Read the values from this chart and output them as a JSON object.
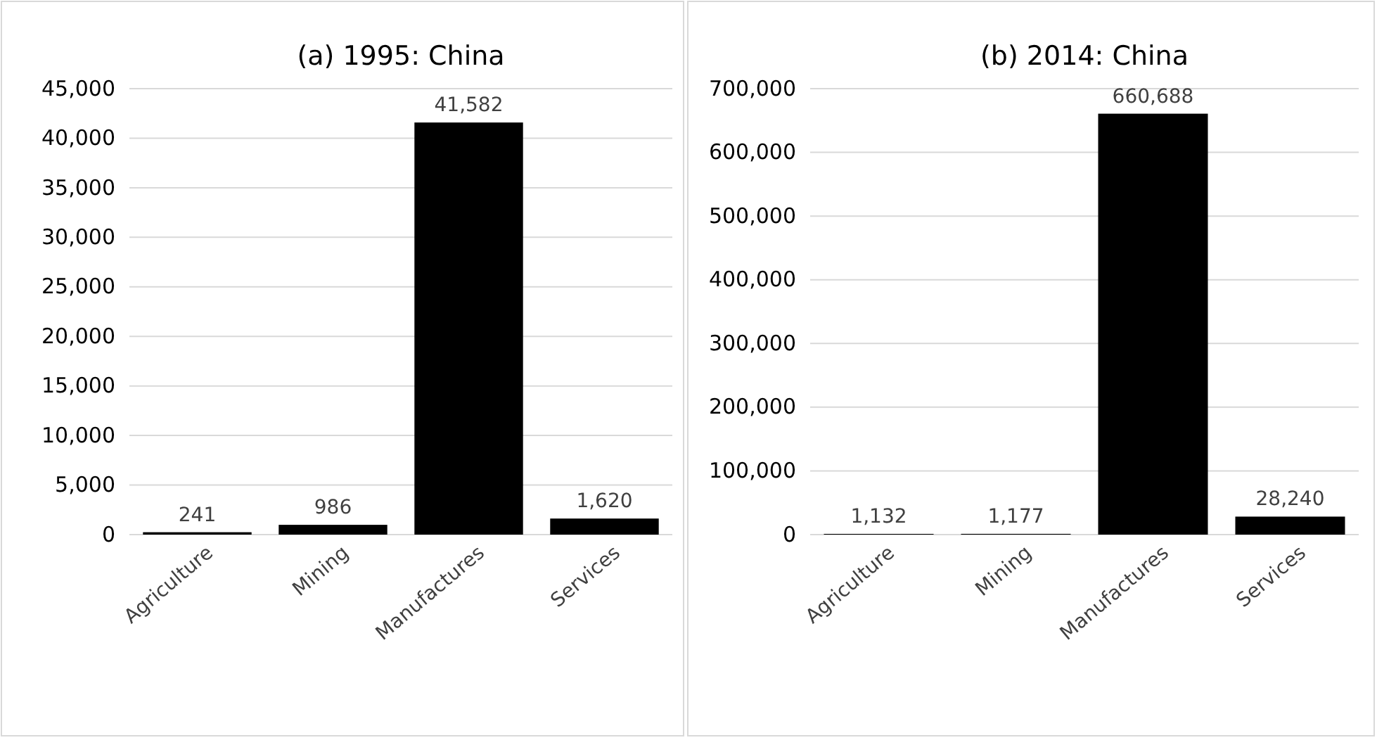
{
  "chart_data": [
    {
      "type": "bar",
      "title": "(a) 1995: China",
      "categories": [
        "Agriculture",
        "Mining",
        "Manufactures",
        "Services"
      ],
      "values": [
        241,
        986,
        41582,
        1620
      ],
      "color": "#000000",
      "ylim": [
        0,
        45000
      ],
      "yticks": [
        {
          "value": 0,
          "label": "0"
        },
        {
          "value": 5000,
          "label": "5,000"
        },
        {
          "value": 10000,
          "label": "10,000"
        },
        {
          "value": 15000,
          "label": "15,000"
        },
        {
          "value": 20000,
          "label": "20,000"
        },
        {
          "value": 25000,
          "label": "25,000"
        },
        {
          "value": 30000,
          "label": "30,000"
        },
        {
          "value": 35000,
          "label": "35,000"
        },
        {
          "value": 40000,
          "label": "40,000"
        },
        {
          "value": 45000,
          "label": "45,000"
        }
      ],
      "grid": "y",
      "value_labels": [
        "241",
        "986",
        "41,582",
        "1,620"
      ]
    },
    {
      "type": "bar",
      "title": "(b) 2014: China",
      "categories": [
        "Agriculture",
        "Mining",
        "Manufactures",
        "Services"
      ],
      "values": [
        1132,
        1177,
        660688,
        28240
      ],
      "color": "#000000",
      "ylim": [
        0,
        700000
      ],
      "yticks": [
        {
          "value": 0,
          "label": "0"
        },
        {
          "value": 100000,
          "label": "100,000"
        },
        {
          "value": 200000,
          "label": "200,000"
        },
        {
          "value": 300000,
          "label": "300,000"
        },
        {
          "value": 400000,
          "label": "400,000"
        },
        {
          "value": 500000,
          "label": "500,000"
        },
        {
          "value": 600000,
          "label": "600,000"
        },
        {
          "value": 700000,
          "label": "700,000"
        }
      ],
      "grid": "y",
      "value_labels": [
        "1,132",
        "1,177",
        "660,688",
        "28,240"
      ]
    }
  ]
}
